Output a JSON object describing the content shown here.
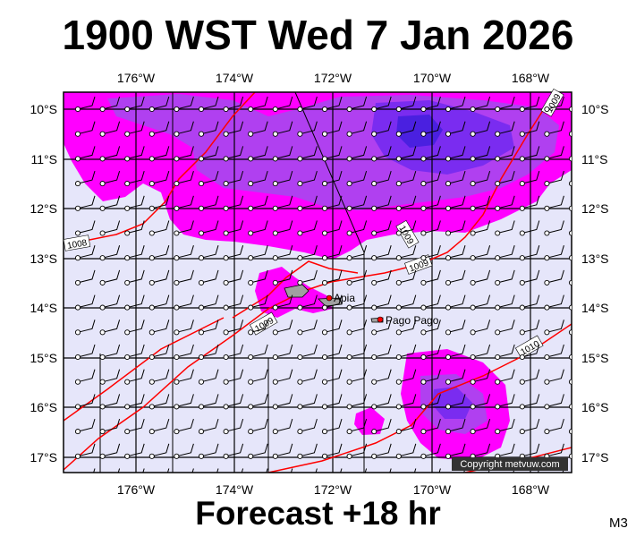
{
  "title": "1900 WST Wed 7 Jan 2026",
  "subtitle": "Forecast +18 hr",
  "model_code": "M3",
  "copyright": "Copyright metvuw.com",
  "lon_labels": [
    "176°W",
    "174°W",
    "172°W",
    "170°W",
    "168°W"
  ],
  "lat_labels": [
    "10°S",
    "11°S",
    "12°S",
    "13°S",
    "14°S",
    "15°S",
    "16°S",
    "17°S"
  ],
  "places": [
    {
      "name": "Apia"
    },
    {
      "name": "Pago Pago"
    }
  ],
  "isobars": [
    "1008",
    "1009",
    "1009",
    "1009",
    "1010",
    "1009"
  ],
  "colors": {
    "background": "#e6e6fa",
    "rain_light": "#ff00ff",
    "rain_medium": "#b040f0",
    "rain_heavy": "#7a2cf0",
    "rain_very_heavy": "#4a20e0",
    "isobar": "#ff0000",
    "land": "#a0a0a0",
    "grid": "#000000"
  }
}
